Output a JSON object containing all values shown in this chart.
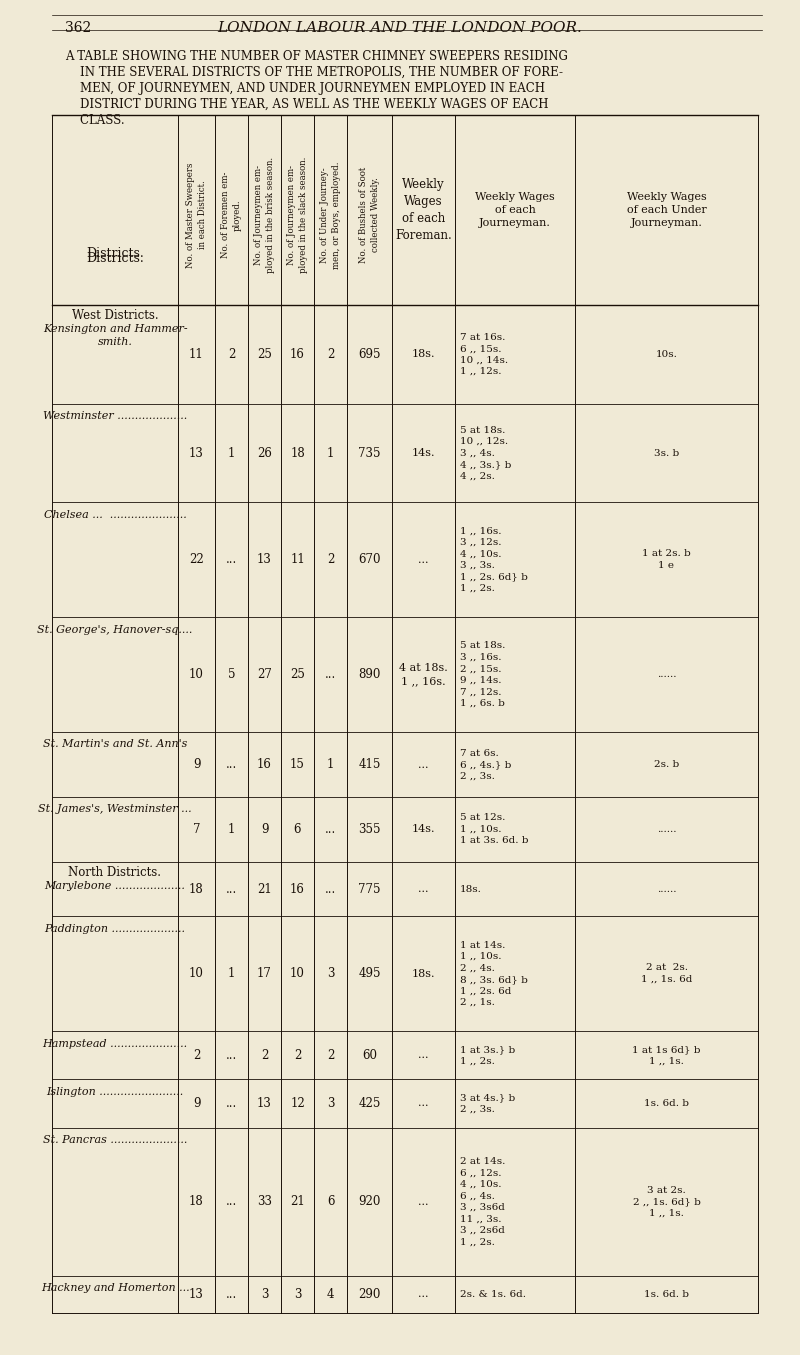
{
  "page_number": "362",
  "page_title": "LONDON LABOUR AND THE LONDON POOR.",
  "subtitle_lines": [
    "A TABLE SHOWING THE NUMBER OF MASTER CHIMNEY SWEEPERS RESIDING",
    "    IN THE SEVERAL DISTRICTS OF THE METROPOLIS, THE NUMBER OF FORE-",
    "    MEN, OF JOURNEYMEN, AND UNDER JOURNEYMEN EMPLOYED IN EACH",
    "    DISTRICT DURING THE YEAR, AS WELL AS THE WEEKLY WAGES OF EACH",
    "    CLASS."
  ],
  "bg_color": "#f0ead6",
  "text_color": "#1a1008",
  "col_headers_rot": [
    "No. of Master Sweepers\nin each District.",
    "No. of Foremen em-\nployed.",
    "No. of Journeymen em-\nployed in the brisk season.",
    "No. of Journeymen em-\nployed in the slack season.",
    "No. of Under Journey-\nmen, or Boys, employed.",
    "No. of Bushels of Soot\ncollected Weekly."
  ],
  "col_headers_normal": [
    "Weekly\nWages\nof each\nForeman.",
    "Weekly Wages\nof each\nJourneyman.",
    "Weekly Wages\nof each Under\nJourneyman."
  ],
  "rows": [
    {
      "section": "West Districts.",
      "district": "Kensington and Hammer-\nsmith.",
      "c1": "11",
      "c2": "2",
      "c3": "25",
      "c4": "16",
      "c5": "2",
      "c6": "695",
      "c7": "18s.",
      "c8": "7 at 16s.\n6 ,, 15s.\n10 ,, 14s.\n1 ,, 12s.",
      "c9": "10s.",
      "row_lines": 4
    },
    {
      "district": "Westminster ....................",
      "c1": "13",
      "c2": "1",
      "c3": "26",
      "c4": "18",
      "c5": "1",
      "c6": "735",
      "c7": "14s.",
      "c8": "5 at 18s.\n10 ,, 12s.\n3 ,, 4s.\n4 ,, 3s.} b\n4 ,, 2s.",
      "c9": "3s. b",
      "row_lines": 5
    },
    {
      "district": "Chelsea ...  ......................",
      "c1": "22",
      "c2": "...",
      "c3": "13",
      "c4": "11",
      "c5": "2",
      "c6": "670",
      "c7": "...",
      "c8": "1 ,, 16s.\n3 ,, 12s.\n4 ,, 10s.\n3 ,, 3s.\n1 ,, 2s. 6d} b\n1 ,, 2s.",
      "c9": "1 at 2s. b\n1 e",
      "row_lines": 6
    },
    {
      "district": "St. George's, Hanover-sq....",
      "c1": "10",
      "c2": "5",
      "c3": "27",
      "c4": "25",
      "c5": "...",
      "c6": "890",
      "c7": "4 at 18s.\n1 ,, 16s.",
      "c8": "5 at 18s.\n3 ,, 16s.\n2 ,, 15s.\n9 ,, 14s.\n7 ,, 12s.\n1 ,, 6s. b",
      "c9": "......",
      "row_lines": 6
    },
    {
      "district": "St. Martin's and St. Ann's",
      "c1": "9",
      "c2": "...",
      "c3": "16",
      "c4": "15",
      "c5": "1",
      "c6": "415",
      "c7": "...",
      "c8": "7 at 6s.\n6 ,, 4s.} b\n2 ,, 3s.",
      "c9": "2s. b",
      "row_lines": 3
    },
    {
      "district": "St. James's, Westminster ...",
      "c1": "7",
      "c2": "1",
      "c3": "9",
      "c4": "6",
      "c5": "...",
      "c6": "355",
      "c7": "14s.",
      "c8": "5 at 12s.\n1 ,, 10s.\n1 at 3s. 6d. b",
      "c9": "......",
      "row_lines": 3
    },
    {
      "section": "North Districts.",
      "district": "Marylebone ....................",
      "c1": "18",
      "c2": "...",
      "c3": "21",
      "c4": "16",
      "c5": "...",
      "c6": "775",
      "c7": "...",
      "c8": "18s.",
      "c9": "......",
      "row_lines": 1
    },
    {
      "district": "Paddington .....................",
      "c1": "10",
      "c2": "1",
      "c3": "17",
      "c4": "10",
      "c5": "3",
      "c6": "495",
      "c7": "18s.",
      "c8": "1 at 14s.\n1 ,, 10s.\n2 ,, 4s.\n8 ,, 3s. 6d} b\n1 ,, 2s. 6d\n2 ,, 1s.",
      "c9": "2 at  2s.\n1 ,, 1s. 6d",
      "row_lines": 6
    },
    {
      "district": "Hampstead ......................",
      "c1": "2",
      "c2": "...",
      "c3": "2",
      "c4": "2",
      "c5": "2",
      "c6": "60",
      "c7": "...",
      "c8": "1 at 3s.} b\n1 ,, 2s.",
      "c9": "1 at 1s 6d} b\n1 ,, 1s.",
      "row_lines": 2
    },
    {
      "district": "Islington ........................",
      "c1": "9",
      "c2": "...",
      "c3": "13",
      "c4": "12",
      "c5": "3",
      "c6": "425",
      "c7": "...",
      "c8": "3 at 4s.} b\n2 ,, 3s.",
      "c9": "1s. 6d. b",
      "row_lines": 2
    },
    {
      "district": "St. Pancras ......................",
      "c1": "18",
      "c2": "...",
      "c3": "33",
      "c4": "21",
      "c5": "6",
      "c6": "920",
      "c7": "...",
      "c8": "2 at 14s.\n6 ,, 12s.\n4 ,, 10s.\n6 ,, 4s.\n3 ,, 3s6d\n11 ,, 3s.\n3 ,, 2s6d\n1 ,, 2s.",
      "c9": "3 at 2s.\n2 ,, 1s. 6d} b\n1 ,, 1s.",
      "row_lines": 8
    },
    {
      "district": "Hackney and Homerton ...",
      "c1": "13",
      "c2": "...",
      "c3": "3",
      "c4": "3",
      "c5": "4",
      "c6": "290",
      "c7": "...",
      "c8": "2s. & 1s. 6d.",
      "c9": "1s. 6d. b",
      "row_lines": 1
    }
  ]
}
